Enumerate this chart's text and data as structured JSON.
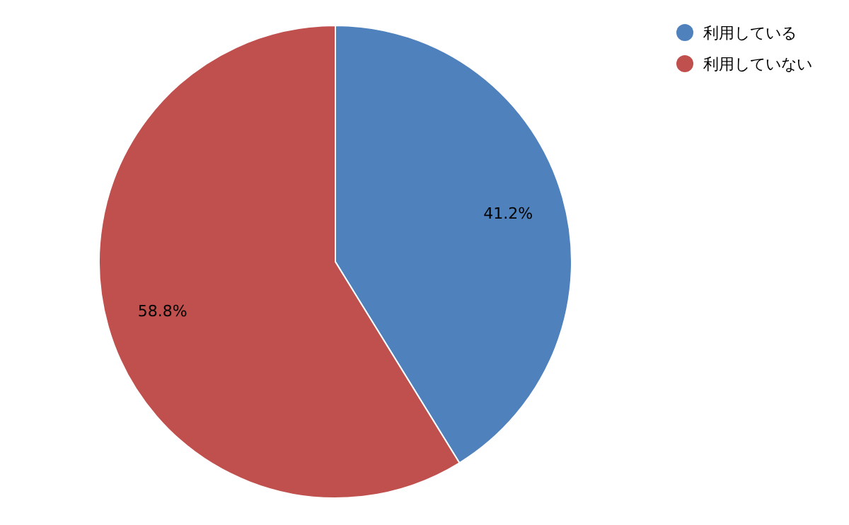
{
  "chart_data": {
    "type": "pie",
    "categories": [
      "利用している",
      "利用していない"
    ],
    "values": [
      41.2,
      58.8
    ],
    "colors": [
      "#4f81bd",
      "#c0504d"
    ],
    "value_labels": [
      "41.2%",
      "58.8%"
    ],
    "legend": "top right"
  }
}
